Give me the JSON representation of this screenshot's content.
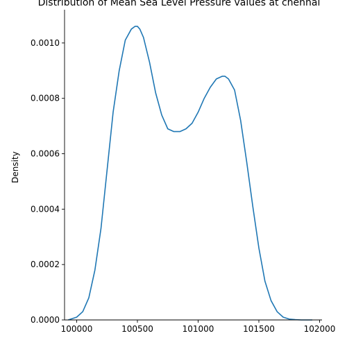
{
  "chart_data": {
    "type": "line",
    "title": "Distribution of Mean Sea Level Pressure values at chennai",
    "xlabel": "",
    "ylabel": "Density",
    "xlim": [
      99900,
      102020
    ],
    "ylim": [
      0,
      0.00112
    ],
    "x_ticks": [
      {
        "value": 100000,
        "label": "100000"
      },
      {
        "value": 100500,
        "label": "100500"
      },
      {
        "value": 101000,
        "label": "101000"
      },
      {
        "value": 101500,
        "label": "101500"
      },
      {
        "value": 102000,
        "label": "102000"
      }
    ],
    "y_ticks": [
      {
        "value": 0,
        "label": "0.0000"
      },
      {
        "value": 0.0002,
        "label": "0.0002"
      },
      {
        "value": 0.0004,
        "label": "0.0004"
      },
      {
        "value": 0.0006,
        "label": "0.0006"
      },
      {
        "value": 0.0008,
        "label": "0.0008"
      },
      {
        "value": 0.001,
        "label": "0.0010"
      }
    ],
    "grid": false,
    "series": [
      {
        "color": "#1f77b4",
        "x": [
          99930,
          100000,
          100050,
          100100,
          100150,
          100200,
          100250,
          100300,
          100350,
          100400,
          100450,
          100480,
          100500,
          100520,
          100550,
          100600,
          100650,
          100700,
          100750,
          100800,
          100850,
          100900,
          100950,
          101000,
          101050,
          101100,
          101150,
          101200,
          101220,
          101250,
          101300,
          101350,
          101400,
          101450,
          101500,
          101550,
          101600,
          101650,
          101700,
          101750,
          101800,
          101850,
          101900,
          101940
        ],
        "y": [
          0.0,
          1e-05,
          3e-05,
          8e-05,
          0.00018,
          0.00033,
          0.00054,
          0.00075,
          0.0009,
          0.00101,
          0.00105,
          0.00106,
          0.00106,
          0.00105,
          0.00102,
          0.00093,
          0.00082,
          0.00074,
          0.00069,
          0.00068,
          0.00068,
          0.00069,
          0.00071,
          0.00075,
          0.0008,
          0.00084,
          0.00087,
          0.00088,
          0.00088,
          0.00087,
          0.00083,
          0.00072,
          0.00057,
          0.00041,
          0.00026,
          0.00014,
          7e-05,
          3e-05,
          1e-05,
          3e-06,
          1e-06,
          0.0,
          0.0,
          0.0
        ]
      }
    ]
  }
}
